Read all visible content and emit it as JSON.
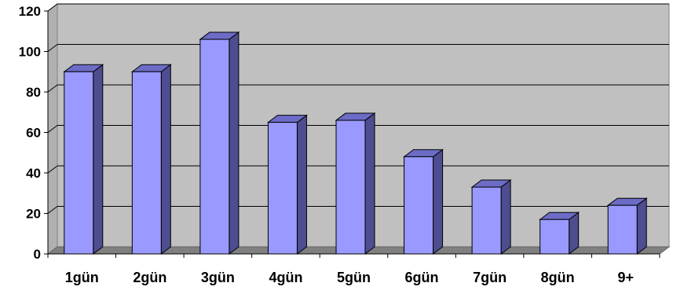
{
  "chart_data": {
    "type": "bar",
    "categories": [
      "1gün",
      "2gün",
      "3gün",
      "4gün",
      "5gün",
      "6gün",
      "7gün",
      "8gün",
      "9+"
    ],
    "values": [
      90,
      90,
      106,
      65,
      66,
      48,
      33,
      17,
      24
    ],
    "ylim": [
      0,
      120
    ],
    "yticks": [
      "0",
      "20",
      "40",
      "60",
      "80",
      "100",
      "120"
    ],
    "ytick_values": [
      0,
      20,
      40,
      60,
      80,
      100,
      120
    ],
    "grid": true,
    "legend": "none",
    "style": "3d-column",
    "colors": {
      "bar_front": "#9999ff",
      "bar_side": "#4d4d8f",
      "bar_top": "#6c6cc6",
      "wall": "#c0c0c0",
      "floor": "#808080",
      "gridline": "#000000"
    }
  }
}
